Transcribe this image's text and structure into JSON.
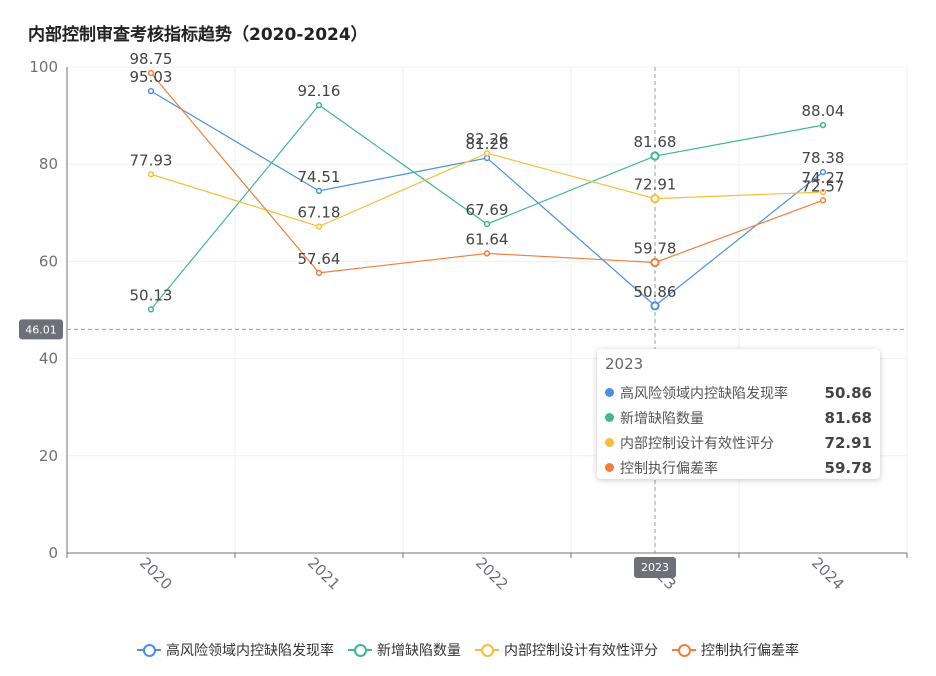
{
  "chart_data": {
    "type": "line",
    "title": "内部控制审查考核指标趋势（2020-2024）",
    "categories": [
      "2020",
      "2021",
      "2022",
      "2023",
      "2024"
    ],
    "ylim": [
      0,
      100
    ],
    "yticks": [
      "0",
      "20",
      "40",
      "60",
      "80",
      "100"
    ],
    "series": [
      {
        "name": "高风险领域内控缺陷发现率",
        "color": "#4a90e2",
        "values": [
          95.03,
          74.51,
          81.28,
          50.86,
          78.38
        ]
      },
      {
        "name": "新增缺陷数量",
        "color": "#3dba8c",
        "values": [
          50.13,
          92.16,
          67.69,
          81.68,
          88.04
        ]
      },
      {
        "name": "内部控制设计有效性评分",
        "color": "#f5bf3b",
        "values": [
          77.93,
          67.18,
          82.26,
          72.91,
          74.27
        ]
      },
      {
        "name": "控制执行偏差率",
        "color": "#f07f3c",
        "values": [
          98.75,
          57.64,
          61.64,
          59.78,
          72.57
        ]
      }
    ],
    "data_labels": [
      [
        "95.03",
        "74.51",
        "81.28",
        "50.86",
        "78.38"
      ],
      [
        "50.13",
        "92.16",
        "67.69",
        "81.68",
        "88.04"
      ],
      [
        "77.93",
        "67.18",
        "82.26",
        "72.91",
        "74.27"
      ],
      [
        "98.75",
        "57.64",
        "61.64",
        "59.78",
        "72.57"
      ]
    ],
    "crosshair": {
      "y_value": 46.01,
      "y_label": "46.01",
      "x_category": "2023",
      "x_label": "2023"
    },
    "tooltip": {
      "title": "2023",
      "rows": [
        {
          "name": "高风险领域内控缺陷发现率",
          "value": "50.86",
          "color": "#4a90e2"
        },
        {
          "name": "新增缺陷数量",
          "value": "81.68",
          "color": "#3dba8c"
        },
        {
          "name": "内部控制设计有效性评分",
          "value": "72.91",
          "color": "#f5bf3b"
        },
        {
          "name": "控制执行偏差率",
          "value": "59.78",
          "color": "#f07f3c"
        }
      ]
    }
  }
}
